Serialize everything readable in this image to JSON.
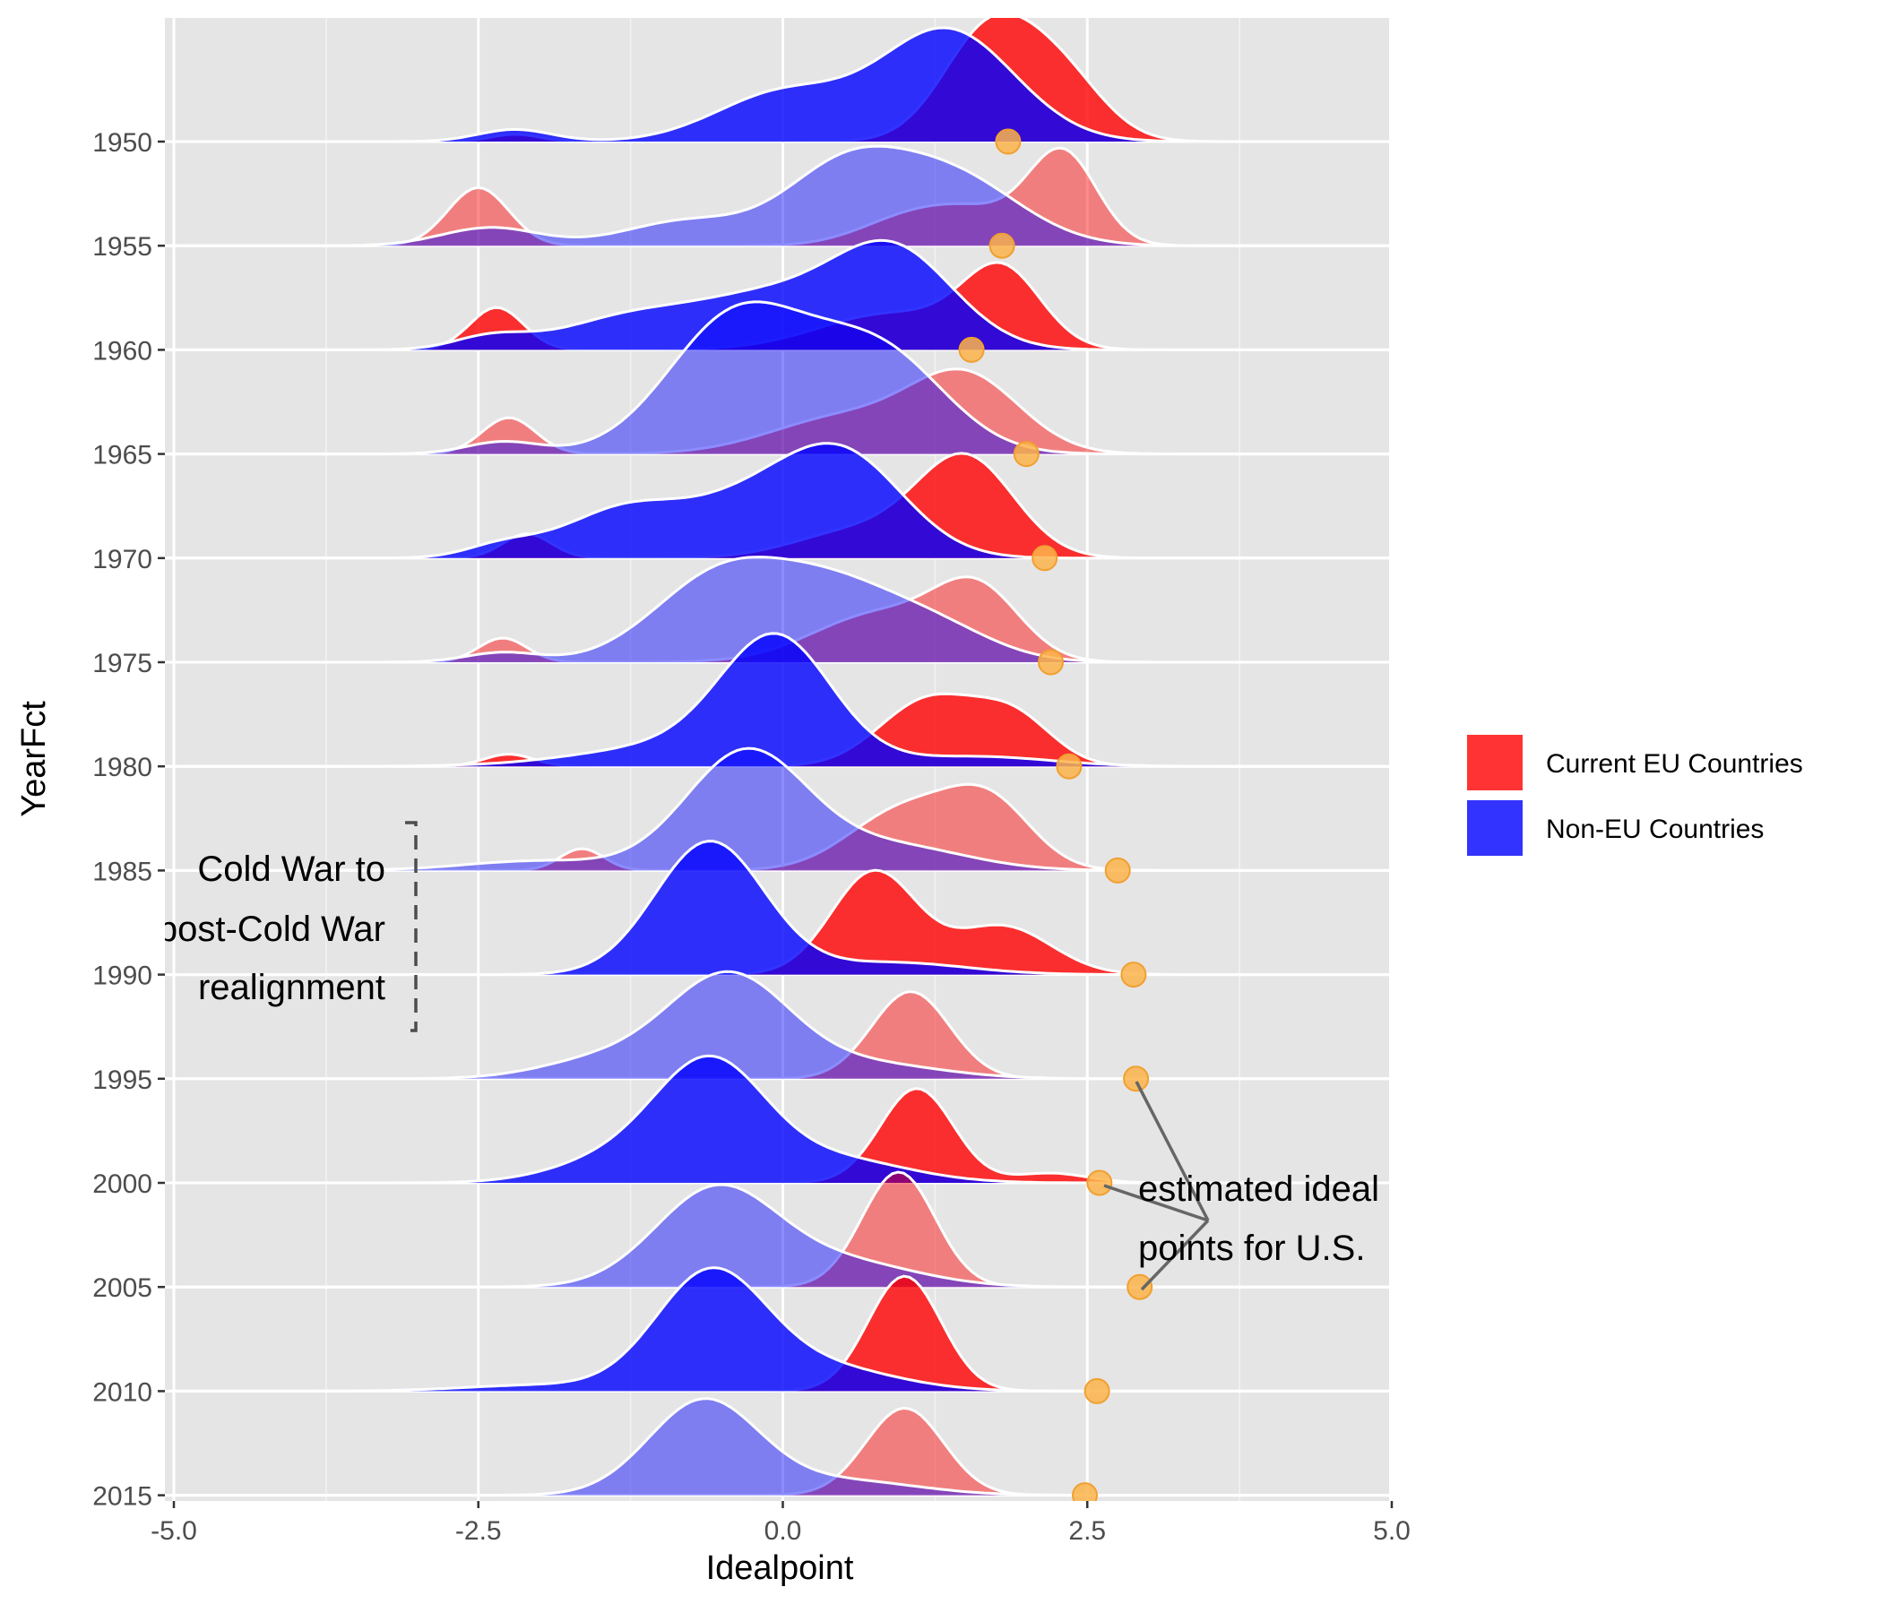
{
  "chart_data": {
    "type": "ridgeline",
    "xlabel": "Idealpoint",
    "ylabel": "YearFct",
    "xlim": [
      -5.0,
      5.0
    ],
    "x_ticks": [
      "-5.0",
      "-2.5",
      "0.0",
      "2.5",
      "5.0"
    ],
    "x_tick_values": [
      -5.0,
      -2.5,
      0.0,
      2.5,
      5.0
    ],
    "grid": true,
    "legend_position": "right",
    "years": [
      "1950",
      "1955",
      "1960",
      "1965",
      "1970",
      "1975",
      "1980",
      "1985",
      "1990",
      "1995",
      "2000",
      "2005",
      "2010",
      "2015"
    ],
    "highlight_years": [
      "1950",
      "1960",
      "1970",
      "1980",
      "1990",
      "2000",
      "2010"
    ],
    "series": [
      {
        "name": "Current EU Countries",
        "color": "#ff0000",
        "components": [
          [
            [
              0.06,
              -2.2,
              0.2
            ],
            [
              0.92,
              1.7,
              0.38
            ],
            [
              0.48,
              2.3,
              0.35
            ]
          ],
          [
            [
              0.48,
              -2.5,
              0.25
            ],
            [
              0.2,
              1.0,
              0.4
            ],
            [
              0.75,
              2.3,
              0.28
            ],
            [
              0.25,
              1.6,
              0.4
            ]
          ],
          [
            [
              0.35,
              -2.35,
              0.22
            ],
            [
              0.62,
              1.8,
              0.32
            ],
            [
              0.3,
              0.9,
              0.6
            ]
          ],
          [
            [
              0.3,
              -2.25,
              0.22
            ],
            [
              0.3,
              0.5,
              0.6
            ],
            [
              0.62,
              1.5,
              0.45
            ]
          ],
          [
            [
              0.2,
              -2.1,
              0.2
            ],
            [
              0.82,
              1.5,
              0.4
            ],
            [
              0.22,
              0.6,
              0.5
            ]
          ],
          [
            [
              0.2,
              -2.3,
              0.2
            ],
            [
              0.4,
              0.8,
              0.55
            ],
            [
              0.55,
              1.6,
              0.35
            ]
          ],
          [
            [
              0.1,
              -2.25,
              0.2
            ],
            [
              0.55,
              1.2,
              0.4
            ],
            [
              0.38,
              1.9,
              0.32
            ]
          ],
          [
            [
              0.18,
              -1.65,
              0.18
            ],
            [
              0.5,
              1.0,
              0.45
            ],
            [
              0.52,
              1.7,
              0.35
            ]
          ],
          [
            [
              0.85,
              0.75,
              0.35
            ],
            [
              0.4,
              1.8,
              0.4
            ]
          ],
          [
            [
              0.72,
              1.05,
              0.32
            ]
          ],
          [
            [
              0.78,
              1.1,
              0.3
            ],
            [
              0.08,
              2.2,
              0.3
            ]
          ],
          [
            [
              0.95,
              0.95,
              0.3
            ]
          ],
          [
            [
              0.95,
              1.0,
              0.3
            ]
          ],
          [
            [
              0.72,
              1.0,
              0.32
            ]
          ]
        ]
      },
      {
        "name": "Non-EU Countries",
        "color": "#0000ff",
        "components": [
          [
            [
              0.1,
              -2.2,
              0.3
            ],
            [
              0.4,
              0.0,
              0.55
            ],
            [
              0.92,
              1.35,
              0.55
            ]
          ],
          [
            [
              0.15,
              -2.4,
              0.4
            ],
            [
              0.62,
              0.5,
              0.5
            ],
            [
              0.55,
              1.4,
              0.55
            ],
            [
              0.2,
              -0.8,
              0.5
            ]
          ],
          [
            [
              0.1,
              -2.4,
              0.3
            ],
            [
              0.28,
              -1.2,
              0.6
            ],
            [
              0.38,
              -0.1,
              0.55
            ],
            [
              0.82,
              0.9,
              0.5
            ]
          ],
          [
            [
              0.1,
              -2.3,
              0.3
            ],
            [
              0.55,
              -0.5,
              0.5
            ],
            [
              0.78,
              0.0,
              0.7
            ],
            [
              0.55,
              0.9,
              0.5
            ]
          ],
          [
            [
              0.1,
              -2.3,
              0.3
            ],
            [
              0.4,
              -1.3,
              0.5
            ],
            [
              0.38,
              -0.3,
              0.5
            ],
            [
              0.82,
              0.5,
              0.5
            ]
          ],
          [
            [
              0.08,
              -2.3,
              0.3
            ],
            [
              0.72,
              -0.5,
              0.55
            ],
            [
              0.5,
              0.4,
              0.5
            ],
            [
              0.3,
              1.2,
              0.5
            ]
          ],
          [
            [
              0.18,
              -0.8,
              0.8
            ],
            [
              0.98,
              -0.05,
              0.45
            ],
            [
              0.08,
              1.6,
              0.6
            ]
          ],
          [
            [
              0.08,
              -2.0,
              0.6
            ],
            [
              0.98,
              -0.3,
              0.5
            ],
            [
              0.2,
              0.9,
              0.6
            ]
          ],
          [
            [
              1.1,
              -0.6,
              0.45
            ],
            [
              0.1,
              0.9,
              0.6
            ]
          ],
          [
            [
              0.85,
              -0.45,
              0.5
            ],
            [
              0.15,
              -1.5,
              0.5
            ],
            [
              0.12,
              0.7,
              0.6
            ]
          ],
          [
            [
              0.95,
              -0.6,
              0.45
            ],
            [
              0.18,
              -1.4,
              0.5
            ],
            [
              0.2,
              0.4,
              0.6
            ]
          ],
          [
            [
              0.8,
              -0.55,
              0.5
            ],
            [
              0.2,
              0.5,
              0.6
            ]
          ],
          [
            [
              0.95,
              -0.6,
              0.45
            ],
            [
              0.2,
              0.3,
              0.6
            ],
            [
              0.05,
              -2.0,
              0.6
            ]
          ],
          [
            [
              0.78,
              -0.65,
              0.45
            ],
            [
              0.12,
              0.5,
              0.6
            ]
          ]
        ]
      }
    ],
    "us_idealpoints": [
      1.85,
      1.8,
      1.55,
      2.0,
      2.15,
      2.2,
      2.35,
      2.75,
      2.88,
      2.9,
      2.6,
      2.93,
      2.58,
      2.48
    ],
    "us_point_color": "#fdb44b",
    "annotations": {
      "cold_war": [
        "Cold War to",
        "post-Cold War",
        "realignment"
      ],
      "us_points": [
        "estimated ideal",
        "points for U.S."
      ]
    }
  },
  "legend": {
    "items": [
      {
        "label": "Current EU Countries",
        "color": "#ff0000"
      },
      {
        "label": "Non-EU Countries",
        "color": "#0000ff"
      }
    ]
  }
}
